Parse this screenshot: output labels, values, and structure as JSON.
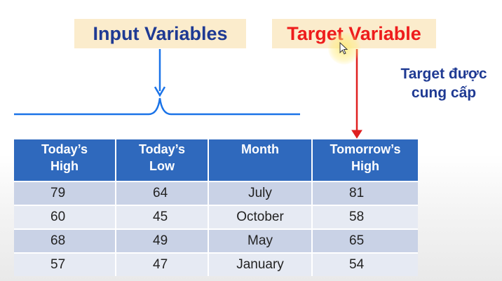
{
  "labels": {
    "input_variables": "Input Variables",
    "target_variable": "Target Variable",
    "note_line1": "Target được",
    "note_line2": "cung cấp"
  },
  "table": {
    "headers": [
      {
        "line1": "Today’s",
        "line2": "High"
      },
      {
        "line1": "Today’s",
        "line2": "Low"
      },
      {
        "line1": "Month",
        "line2": ""
      },
      {
        "line1": "Tomorrow’s",
        "line2": "High"
      }
    ],
    "rows": [
      [
        "79",
        "64",
        "July",
        "81"
      ],
      [
        "60",
        "45",
        "October",
        "58"
      ],
      [
        "68",
        "49",
        "May",
        "65"
      ],
      [
        "57",
        "47",
        "January",
        "54"
      ]
    ]
  },
  "colors": {
    "input_label": "#1f3a93",
    "target_label": "#ee1c1c",
    "label_background": "#fbeccc",
    "header_background": "#2f69bd",
    "row_dark": "#c9d2e6",
    "row_light": "#e6eaf3",
    "brace_line": "#1a73e8",
    "target_arrow": "#e02020"
  },
  "icons": {
    "cursor": "mouse-pointer-icon"
  }
}
